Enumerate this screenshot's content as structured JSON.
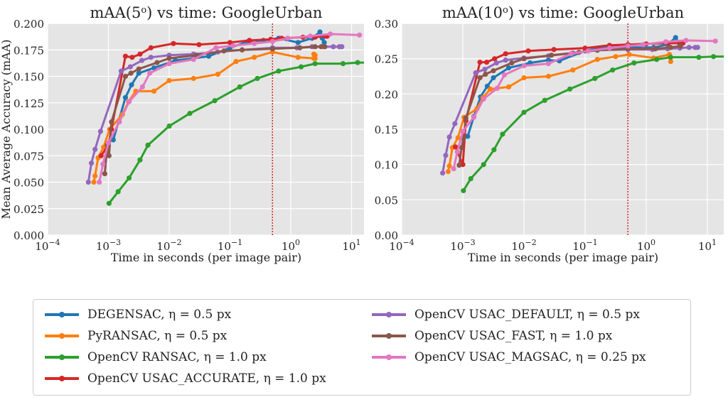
{
  "legend": {
    "items": [
      {
        "label": "DEGENSAC, η = 0.5 px",
        "color": "#1f77b4"
      },
      {
        "label": "PyRANSAC, η = 0.5 px",
        "color": "#ff7f0e"
      },
      {
        "label": "OpenCV RANSAC, η = 1.0 px",
        "color": "#2ca02c"
      },
      {
        "label": "OpenCV USAC_ACCURATE, η = 1.0 px",
        "color": "#d62728"
      },
      {
        "label": "OpenCV USAC_DEFAULT, η = 0.5 px",
        "color": "#9467bd"
      },
      {
        "label": "OpenCV USAC_FAST, η = 1.0 px",
        "color": "#8c564b"
      },
      {
        "label": "OpenCV USAC_MAGSAC, η = 0.25 px",
        "color": "#e377c2"
      }
    ]
  },
  "chart_data": [
    {
      "type": "line",
      "title": "mAA(5º) vs time: GoogleUrban",
      "title_main": "mAA(5",
      "title_sup": "o",
      "title_rest": ") vs time: GoogleUrban",
      "xlabel": "Time in seconds (per image pair)",
      "ylabel": "Mean Average Accuracy (mAA)",
      "xscale": "log",
      "xlim_log10": [
        -4,
        1.27
      ],
      "ylim": [
        0,
        0.2
      ],
      "yticks": [
        "0.000",
        "0.025",
        "0.050",
        "0.075",
        "0.100",
        "0.125",
        "0.150",
        "0.175",
        "0.200"
      ],
      "ytick_values": [
        0,
        0.025,
        0.05,
        0.075,
        0.1,
        0.125,
        0.15,
        0.175,
        0.2
      ],
      "xticks": [
        {
          "base": "10",
          "exp": "−4",
          "log": -4
        },
        {
          "base": "10",
          "exp": "−3",
          "log": -3
        },
        {
          "base": "10",
          "exp": "−2",
          "log": -2
        },
        {
          "base": "10",
          "exp": "−1",
          "log": -1
        },
        {
          "base": "10",
          "exp": "0",
          "log": 0
        },
        {
          "base": "10",
          "exp": "1",
          "log": 1
        }
      ],
      "vline_seconds": 0.5,
      "grid": true,
      "series": [
        {
          "name": "DEGENSAC, η = 0.5 px",
          "color": "#1f77b4",
          "log10_x": [
            -2.92,
            -2.83,
            -2.72,
            -2.62,
            -2.5,
            -2.25,
            -1.9,
            -1.6,
            -1.35,
            -1.0,
            -0.7,
            -0.45,
            -0.2,
            0.12,
            0.35,
            0.48,
            0.52,
            0.55
          ],
          "y": [
            0.09,
            0.108,
            0.13,
            0.142,
            0.153,
            0.158,
            0.165,
            0.167,
            0.169,
            0.177,
            0.183,
            0.184,
            0.186,
            0.182,
            0.186,
            0.192,
            0.186,
            0.182
          ]
        },
        {
          "name": "PyRANSAC, η = 0.5 px",
          "color": "#ff7f0e",
          "log10_x": [
            -3.24,
            -3.22,
            -3.17,
            -3.08,
            -2.98,
            -2.77,
            -2.67,
            -2.55,
            -2.25,
            -2.0,
            -1.6,
            -1.2,
            -0.9,
            -0.6,
            -0.3,
            0.12,
            0.38,
            0.38,
            0.4,
            0.4
          ],
          "y": [
            0.05,
            0.056,
            0.073,
            0.083,
            0.1,
            0.114,
            0.126,
            0.136,
            0.136,
            0.146,
            0.148,
            0.152,
            0.164,
            0.168,
            0.173,
            0.168,
            0.167,
            0.171,
            0.17,
            0.167
          ]
        },
        {
          "name": "OpenCV RANSAC, η = 1.0 px",
          "color": "#2ca02c",
          "log10_x": [
            -2.99,
            -2.84,
            -2.66,
            -2.48,
            -2.35,
            -2.0,
            -1.66,
            -1.25,
            -0.84,
            -0.55,
            -0.2,
            0.17,
            0.4,
            0.86,
            1.1,
            1.3
          ],
          "y": [
            0.03,
            0.041,
            0.054,
            0.071,
            0.085,
            0.103,
            0.115,
            0.127,
            0.14,
            0.148,
            0.155,
            0.159,
            0.162,
            0.162,
            0.163,
            0.163
          ]
        },
        {
          "name": "OpenCV USAC_ACCURATE, η = 1.0 px",
          "color": "#d62728",
          "log10_x": [
            -3.12,
            -3.0,
            -2.95,
            -2.72,
            -2.61,
            -2.48,
            -2.3,
            -1.93,
            -1.51,
            -1.0,
            -0.68,
            -0.33,
            -0.15,
            0.2,
            0.4,
            0.58,
            0.6
          ],
          "y": [
            0.075,
            0.085,
            0.1,
            0.169,
            0.168,
            0.171,
            0.177,
            0.181,
            0.18,
            0.182,
            0.184,
            0.185,
            0.186,
            0.187,
            0.187,
            0.188,
            0.188
          ]
        },
        {
          "name": "OpenCV USAC_DEFAULT, η = 0.5 px",
          "color": "#9467bd",
          "log10_x": [
            -3.33,
            -3.28,
            -3.22,
            -3.13,
            -2.79,
            -2.64,
            -2.45,
            -2.3,
            -2.0,
            -1.6,
            -1.2,
            -0.8,
            -0.3,
            0.1,
            0.35,
            0.55,
            0.7,
            0.8,
            0.84
          ],
          "y": [
            0.05,
            0.068,
            0.081,
            0.098,
            0.155,
            0.159,
            0.165,
            0.168,
            0.17,
            0.171,
            0.173,
            0.175,
            0.177,
            0.177,
            0.178,
            0.178,
            0.178,
            0.178,
            0.178
          ]
        },
        {
          "name": "OpenCV USAC_FAST, η = 1.0 px",
          "color": "#8c564b",
          "log10_x": [
            -3.06,
            -3.02,
            -2.99,
            -2.95,
            -2.72,
            -2.63,
            -2.5,
            -2.2,
            -2.0,
            -1.55,
            -1.1,
            -0.8,
            -0.3,
            0.15,
            0.4,
            0.5,
            0.56
          ],
          "y": [
            0.058,
            0.085,
            0.075,
            0.107,
            0.15,
            0.153,
            0.157,
            0.163,
            0.167,
            0.17,
            0.174,
            0.175,
            0.176,
            0.177,
            0.178,
            0.178,
            0.178
          ]
        },
        {
          "name": "OpenCV USAC_MAGSAC, η = 0.25 px",
          "color": "#e377c2",
          "log10_x": [
            -3.15,
            -3.09,
            -3.0,
            -2.82,
            -2.66,
            -2.44,
            -2.32,
            -2.0,
            -1.6,
            -1.23,
            -0.95,
            -0.6,
            -0.3,
            -0.05,
            0.32,
            0.65,
            1.13
          ],
          "y": [
            0.05,
            0.067,
            0.087,
            0.107,
            0.126,
            0.14,
            0.153,
            0.162,
            0.166,
            0.177,
            0.179,
            0.181,
            0.183,
            0.186,
            0.188,
            0.19,
            0.189
          ]
        }
      ]
    },
    {
      "type": "line",
      "title": "mAA(10º) vs time: GoogleUrban",
      "title_main": "mAA(10",
      "title_sup": "o",
      "title_rest": ") vs time: GoogleUrban",
      "xlabel": "Time in seconds (per image pair)",
      "ylabel": "",
      "xscale": "log",
      "xlim_log10": [
        -4,
        1.27
      ],
      "ylim": [
        0,
        0.3
      ],
      "yticks": [
        "0.00",
        "0.05",
        "0.10",
        "0.15",
        "0.20",
        "0.25",
        "0.30"
      ],
      "ytick_values": [
        0,
        0.05,
        0.1,
        0.15,
        0.2,
        0.25,
        0.3
      ],
      "xticks": [
        {
          "base": "10",
          "exp": "−4",
          "log": -4
        },
        {
          "base": "10",
          "exp": "−3",
          "log": -3
        },
        {
          "base": "10",
          "exp": "−2",
          "log": -2
        },
        {
          "base": "10",
          "exp": "−1",
          "log": -1
        },
        {
          "base": "10",
          "exp": "0",
          "log": 0
        },
        {
          "base": "10",
          "exp": "1",
          "log": 1
        }
      ],
      "vline_seconds": 0.5,
      "grid": true,
      "series": [
        {
          "name": "DEGENSAC, η = 0.5 px",
          "color": "#1f77b4",
          "log10_x": [
            -2.92,
            -2.82,
            -2.71,
            -2.6,
            -2.5,
            -2.25,
            -1.9,
            -1.6,
            -1.42,
            -1.0,
            -0.7,
            -0.45,
            -0.2,
            0.12,
            0.35,
            0.48,
            0.55
          ],
          "y": [
            0.14,
            0.168,
            0.196,
            0.211,
            0.223,
            0.237,
            0.244,
            0.248,
            0.247,
            0.261,
            0.266,
            0.266,
            0.266,
            0.266,
            0.27,
            0.28,
            0.27
          ]
        },
        {
          "name": "PyRANSAC, η = 0.5 px",
          "color": "#ff7f0e",
          "log10_x": [
            -3.24,
            -3.22,
            -3.17,
            -3.08,
            -2.98,
            -2.77,
            -2.67,
            -2.55,
            -2.25,
            -2.0,
            -1.6,
            -1.2,
            -0.8,
            -0.5,
            -0.28,
            0.12,
            0.38,
            0.38,
            0.4
          ],
          "y": [
            0.09,
            0.098,
            0.124,
            0.138,
            0.167,
            0.179,
            0.195,
            0.207,
            0.21,
            0.223,
            0.225,
            0.234,
            0.249,
            0.253,
            0.256,
            0.251,
            0.256,
            0.253,
            0.246
          ]
        },
        {
          "name": "OpenCV RANSAC, η = 1.0 px",
          "color": "#2ca02c",
          "log10_x": [
            -2.99,
            -2.87,
            -2.66,
            -2.49,
            -2.35,
            -2.0,
            -1.66,
            -1.25,
            -0.84,
            -0.55,
            -0.2,
            0.17,
            0.4,
            0.86,
            1.1,
            1.3
          ],
          "y": [
            0.063,
            0.08,
            0.1,
            0.121,
            0.143,
            0.174,
            0.191,
            0.207,
            0.222,
            0.234,
            0.244,
            0.249,
            0.252,
            0.252,
            0.253,
            0.253
          ]
        },
        {
          "name": "OpenCV USAC_ACCURATE, η = 1.0 px",
          "color": "#d62728",
          "log10_x": [
            -3.12,
            -3.0,
            -2.95,
            -2.72,
            -2.61,
            -2.48,
            -2.3,
            -1.93,
            -1.51,
            -1.0,
            -0.6,
            -0.3,
            0.0,
            0.35,
            0.55,
            0.6
          ],
          "y": [
            0.125,
            0.1,
            0.162,
            0.245,
            0.245,
            0.25,
            0.257,
            0.261,
            0.263,
            0.265,
            0.269,
            0.27,
            0.271,
            0.272,
            0.272,
            0.272
          ]
        },
        {
          "name": "OpenCV USAC_DEFAULT, η = 0.5 px",
          "color": "#9467bd",
          "log10_x": [
            -3.33,
            -3.28,
            -3.22,
            -3.13,
            -2.79,
            -2.64,
            -2.45,
            -2.3,
            -2.0,
            -1.6,
            -1.2,
            -0.8,
            -0.3,
            0.1,
            0.35,
            0.55,
            0.7,
            0.8,
            0.84
          ],
          "y": [
            0.088,
            0.113,
            0.139,
            0.158,
            0.23,
            0.235,
            0.244,
            0.248,
            0.251,
            0.254,
            0.258,
            0.262,
            0.263,
            0.263,
            0.264,
            0.265,
            0.266,
            0.266,
            0.266
          ]
        },
        {
          "name": "OpenCV USAC_FAST, η = 1.0 px",
          "color": "#8c564b",
          "log10_x": [
            -3.06,
            -3.02,
            -2.99,
            -2.95,
            -2.72,
            -2.63,
            -2.5,
            -2.2,
            -2.0,
            -1.55,
            -1.1,
            -0.8,
            -0.3,
            0.15,
            0.4,
            0.56
          ],
          "y": [
            0.099,
            0.124,
            0.137,
            0.166,
            0.223,
            0.228,
            0.233,
            0.244,
            0.25,
            0.255,
            0.259,
            0.262,
            0.264,
            0.264,
            0.266,
            0.268
          ]
        },
        {
          "name": "OpenCV USAC_MAGSAC, η = 0.25 px",
          "color": "#e377c2",
          "log10_x": [
            -3.15,
            -3.09,
            -3.0,
            -2.82,
            -2.66,
            -2.44,
            -2.32,
            -2.0,
            -1.6,
            -1.23,
            -0.95,
            -0.6,
            -0.3,
            -0.05,
            0.32,
            0.65,
            1.13
          ],
          "y": [
            0.094,
            0.118,
            0.147,
            0.167,
            0.193,
            0.208,
            0.227,
            0.24,
            0.243,
            0.257,
            0.261,
            0.265,
            0.268,
            0.27,
            0.274,
            0.276,
            0.275
          ]
        }
      ]
    }
  ]
}
